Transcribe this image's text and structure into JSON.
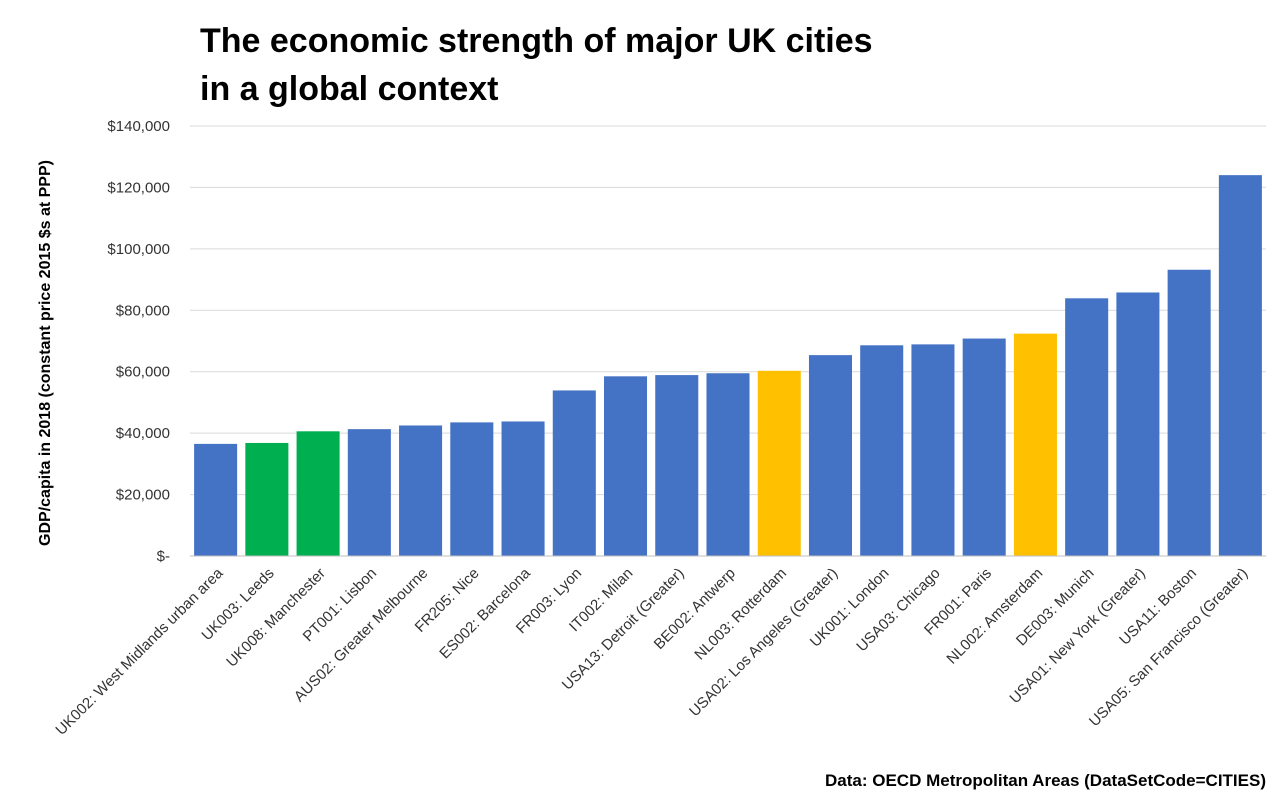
{
  "chart_data": {
    "type": "bar",
    "title_lines": [
      "The economic strength of major UK cities",
      "in a global context"
    ],
    "ylabel": "GDP/capita in 2018 (constant price 2015 $s at PPP)",
    "source": "Data: OECD Metropolitan Areas (DataSetCode=CITIES)",
    "ylim": [
      0,
      140000
    ],
    "yticks": [
      {
        "value": 0,
        "label": "$-"
      },
      {
        "value": 20000,
        "label": "$20,000"
      },
      {
        "value": 40000,
        "label": "$40,000"
      },
      {
        "value": 60000,
        "label": "$60,000"
      },
      {
        "value": 80000,
        "label": "$80,000"
      },
      {
        "value": 100000,
        "label": "$100,000"
      },
      {
        "value": 120000,
        "label": "$120,000"
      },
      {
        "value": 140000,
        "label": "$140,000"
      }
    ],
    "grid": true,
    "legend": "none",
    "colors": {
      "default": "#4472C4",
      "uk": "#00B050",
      "netherlands": "#FFC000"
    },
    "categories": [
      "UK002: West Midlands urban area",
      "UK003: Leeds",
      "UK008: Manchester",
      "PT001: Lisbon",
      "AUS02: Greater Melbourne",
      "FR205: Nice",
      "ES002: Barcelona",
      "FR003: Lyon",
      "IT002: Milan",
      "USA13: Detroit (Greater)",
      "BE002: Antwerp",
      "NL003: Rotterdam",
      "USA02: Los Angeles (Greater)",
      "UK001: London",
      "USA03: Chicago",
      "FR001: Paris",
      "NL002: Amsterdam",
      "DE003: Munich",
      "USA01: New York (Greater)",
      "USA11: Boston",
      "USA05: San Francisco (Greater)"
    ],
    "values": [
      36500,
      36800,
      40600,
      41300,
      42500,
      43500,
      43800,
      53900,
      58500,
      58900,
      59500,
      60300,
      65400,
      68600,
      68900,
      70800,
      72400,
      83900,
      85800,
      93200,
      124000
    ],
    "bar_color_keys": [
      "default",
      "uk",
      "uk",
      "default",
      "default",
      "default",
      "default",
      "default",
      "default",
      "default",
      "default",
      "netherlands",
      "default",
      "default",
      "default",
      "default",
      "netherlands",
      "default",
      "default",
      "default",
      "default"
    ]
  }
}
